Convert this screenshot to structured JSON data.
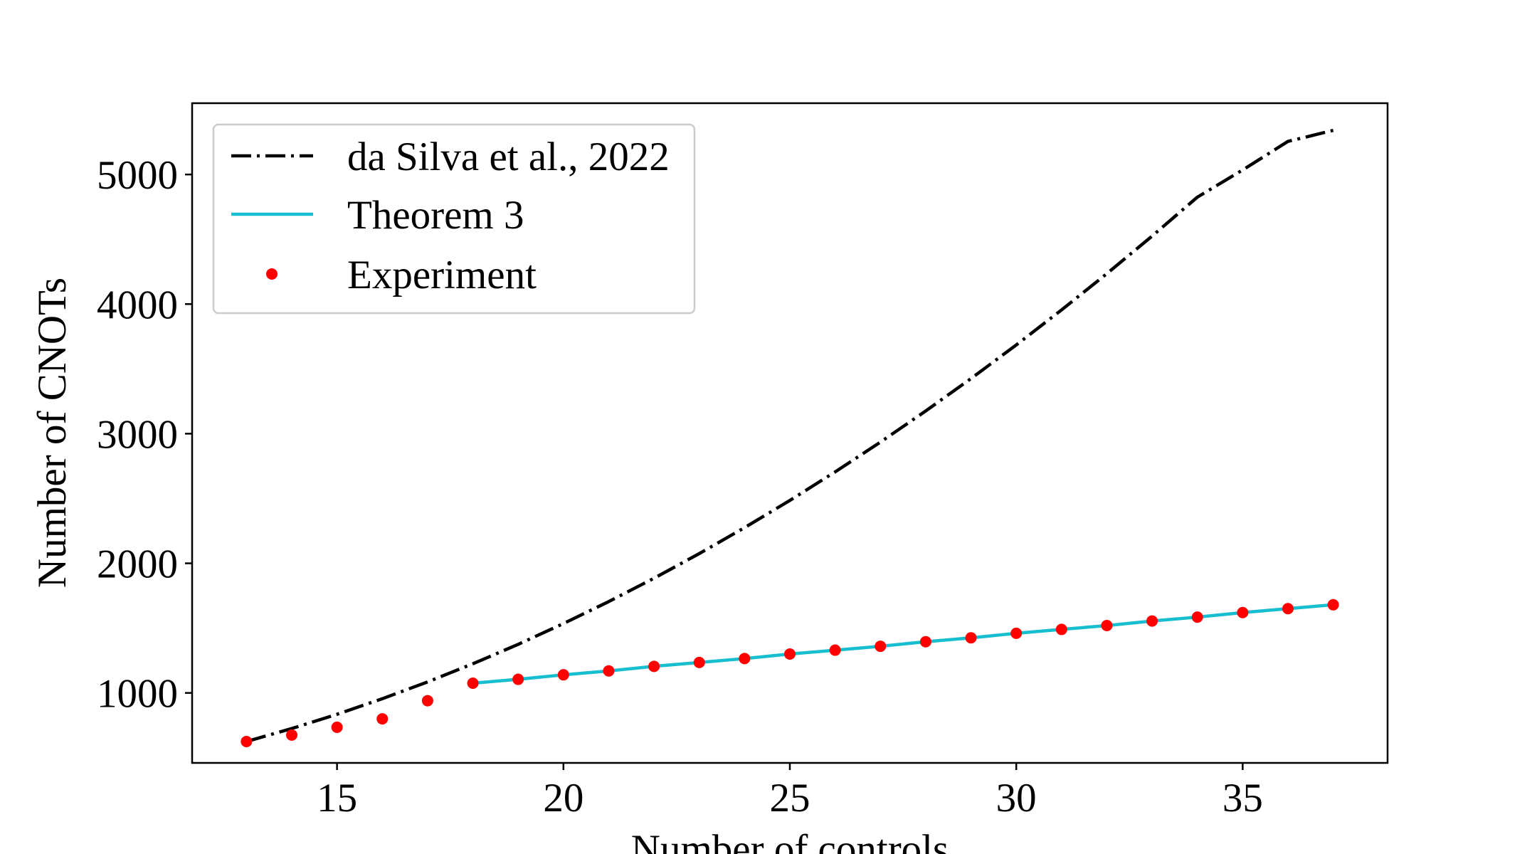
{
  "chart_data": {
    "type": "line",
    "title": "",
    "xlabel": "Number of controls",
    "ylabel": "Number of CNOTs",
    "xlim": [
      11.8,
      38.2
    ],
    "ylim": [
      460,
      5550
    ],
    "xticks": [
      15,
      20,
      25,
      30,
      35
    ],
    "yticks": [
      1000,
      2000,
      3000,
      4000,
      5000
    ],
    "grid": false,
    "legend_position": "top-left",
    "series": [
      {
        "name": "da Silva et al., 2022",
        "style": "dash-dot",
        "color": "#000000",
        "x": [
          13,
          14,
          15,
          16,
          17,
          18,
          19,
          20,
          21,
          22,
          23,
          24,
          25,
          26,
          27,
          28,
          29,
          30,
          31,
          32,
          33,
          34,
          35,
          36,
          37
        ],
        "y": [
          625,
          725,
          835,
          955,
          1085,
          1225,
          1375,
          1535,
          1705,
          1885,
          2075,
          2275,
          2485,
          2705,
          2935,
          3175,
          3425,
          3685,
          3955,
          4235,
          4525,
          4825,
          5035,
          5255,
          5340
        ]
      },
      {
        "name": "Theorem 3",
        "style": "solid",
        "color": "#17becf",
        "x": [
          18,
          19,
          20,
          21,
          22,
          23,
          24,
          25,
          26,
          27,
          28,
          29,
          30,
          31,
          32,
          33,
          34,
          35,
          36,
          37
        ],
        "y": [
          1075,
          1105,
          1140,
          1170,
          1205,
          1235,
          1265,
          1300,
          1330,
          1360,
          1395,
          1425,
          1460,
          1490,
          1520,
          1555,
          1585,
          1620,
          1650,
          1680
        ]
      },
      {
        "name": "Experiment",
        "style": "markers",
        "color": "#ff0000",
        "x": [
          13,
          14,
          15,
          16,
          17,
          18,
          19,
          20,
          21,
          22,
          23,
          24,
          25,
          26,
          27,
          28,
          29,
          30,
          31,
          32,
          33,
          34,
          35,
          36,
          37
        ],
        "y": [
          625,
          675,
          735,
          800,
          940,
          1075,
          1105,
          1140,
          1170,
          1205,
          1235,
          1265,
          1300,
          1330,
          1360,
          1395,
          1425,
          1460,
          1490,
          1520,
          1555,
          1585,
          1620,
          1650,
          1680
        ]
      }
    ]
  }
}
